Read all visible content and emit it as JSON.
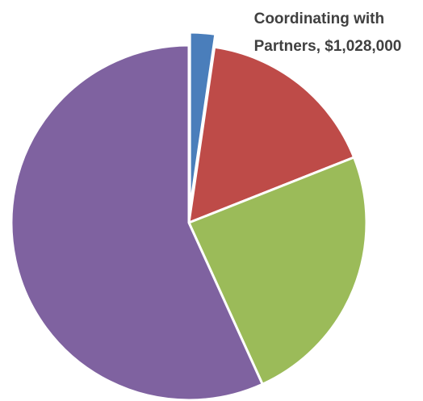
{
  "chart_data": {
    "type": "pie",
    "title": "",
    "slices": [
      {
        "label": "",
        "value": 2.3,
        "color": "#4a7ebb",
        "exploded": true
      },
      {
        "label": "",
        "value": 16.7,
        "color": "#be4b48",
        "exploded": false
      },
      {
        "label": "",
        "value": 24.2,
        "color": "#9bbb59",
        "exploded": false
      },
      {
        "label": "",
        "value": 56.8,
        "color": "#7f62a0",
        "exploded": false
      }
    ],
    "data_labels": [
      {
        "slice": 0,
        "lines": [
          "Coordinating with",
          "Partners,  $1,028,000"
        ]
      }
    ]
  }
}
